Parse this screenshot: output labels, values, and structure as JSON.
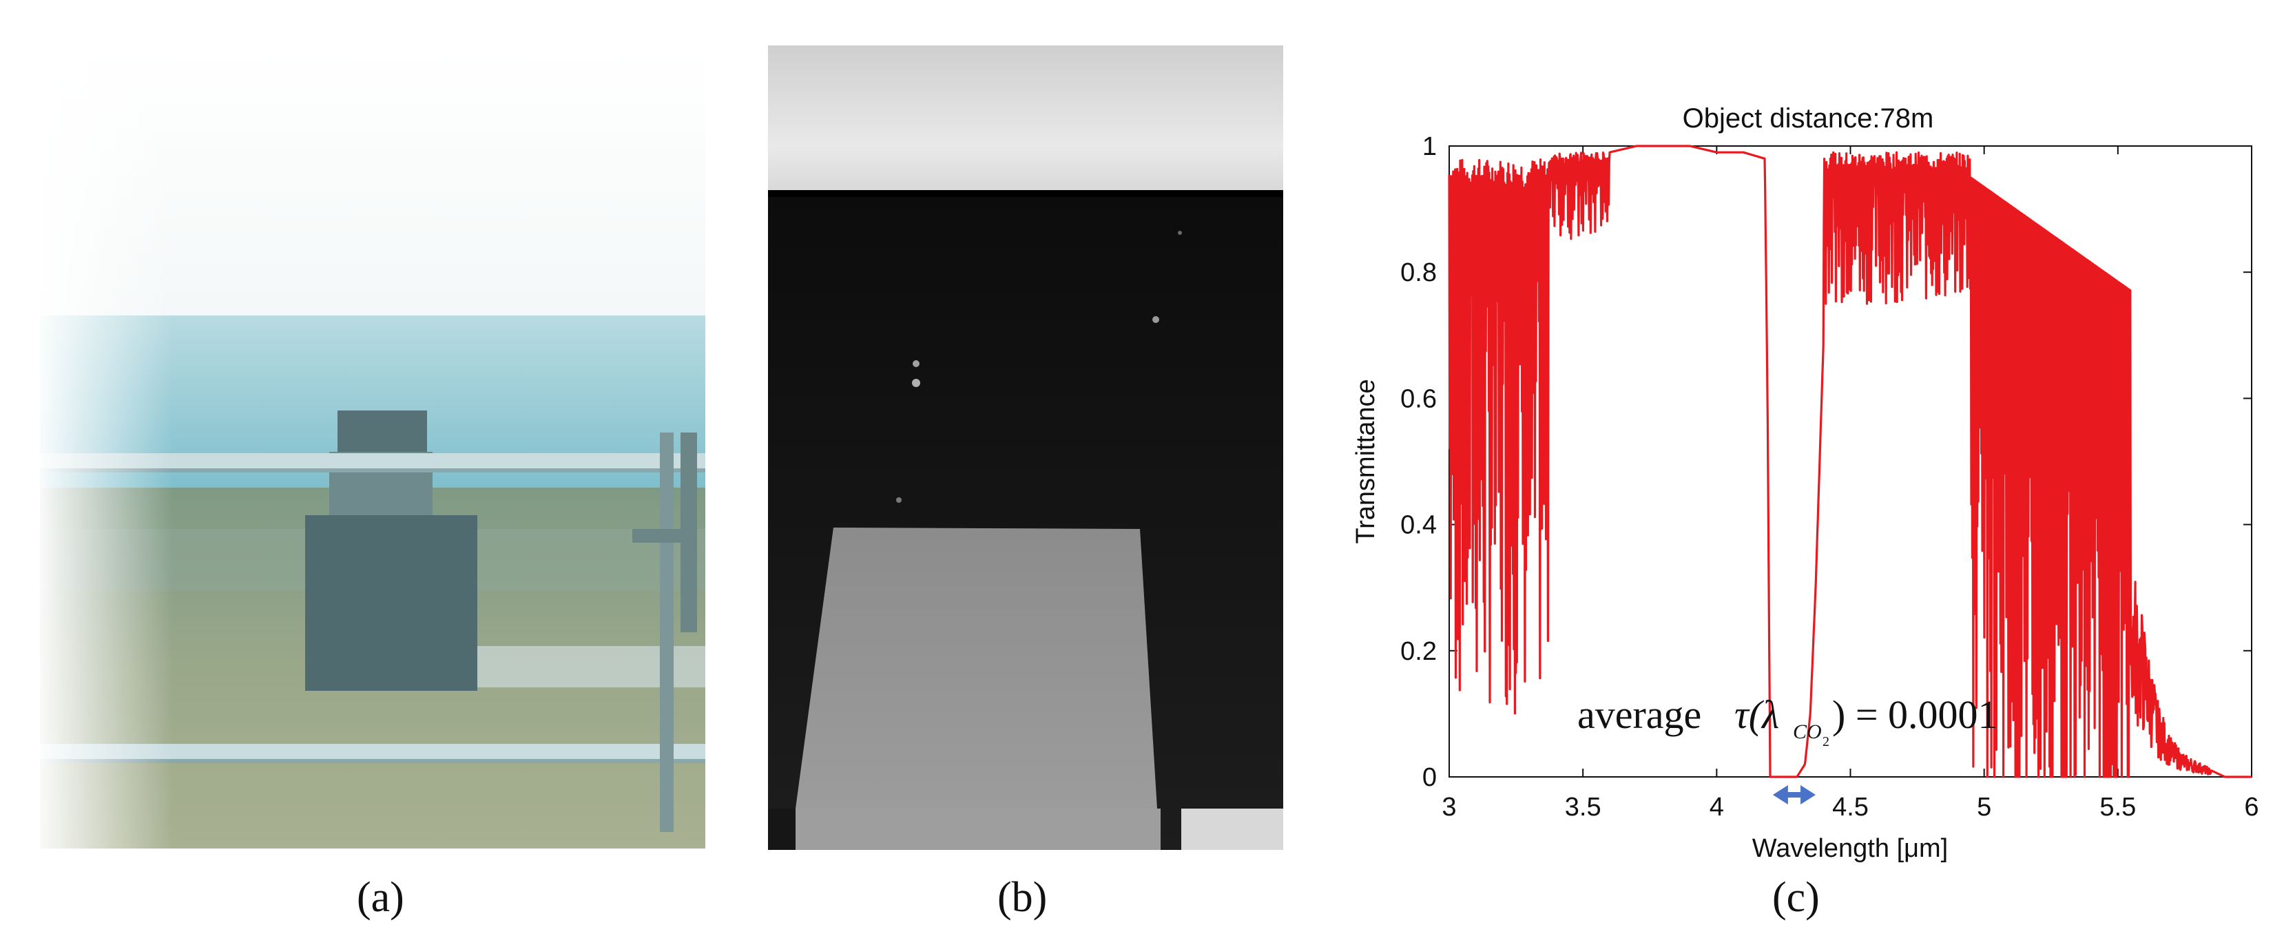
{
  "panels": {
    "a": {
      "caption": "(a)",
      "description": "visible photo"
    },
    "b": {
      "caption": "(b)",
      "description": "infrared image"
    },
    "c": {
      "caption": "(c)"
    }
  },
  "chart_data": {
    "type": "line",
    "title": "Object distance:78m",
    "xlabel": "Wavelength [μm]",
    "ylabel": "Transmittance",
    "xlim": [
      3,
      6
    ],
    "ylim": [
      0,
      1
    ],
    "xticks": [
      "3",
      "3.5",
      "4",
      "4.5",
      "5",
      "5.5",
      "6"
    ],
    "yticks": [
      "0",
      "0.2",
      "0.4",
      "0.6",
      "0.8",
      "1"
    ],
    "grid": false,
    "line_color": "#e8191f",
    "arrow_color": "#4a72c9",
    "annotation": {
      "prefix": "average",
      "tau": "τ(λ",
      "sub": "CO",
      "subsub": "2",
      "suffix": ") = 0.0001"
    },
    "arrow_range": [
      4.21,
      4.37
    ],
    "series": [
      {
        "x": [
          3.0,
          3.02,
          3.05,
          3.08,
          3.1,
          3.12,
          3.15,
          3.18,
          3.2,
          3.22,
          3.25,
          3.28,
          3.3,
          3.33,
          3.36,
          3.4,
          3.45,
          3.5,
          3.6,
          3.7,
          3.8,
          3.9,
          4.0,
          4.1,
          4.18,
          4.19,
          4.2,
          4.22,
          4.25,
          4.3,
          4.33,
          4.35,
          4.37,
          4.4,
          4.45,
          4.5,
          4.55,
          4.6,
          4.65,
          4.7,
          4.75,
          4.8,
          4.85,
          4.9,
          4.95,
          5.0,
          5.05,
          5.1,
          5.15,
          5.2,
          5.25,
          5.3,
          5.35,
          5.4,
          5.45,
          5.5,
          5.55,
          5.6,
          5.65,
          5.7,
          5.75,
          5.8,
          5.85,
          5.9,
          6.0
        ],
        "y": [
          0.95,
          0.4,
          0.96,
          0.2,
          0.95,
          0.1,
          0.96,
          0.25,
          0.95,
          0.18,
          0.97,
          0.3,
          0.94,
          0.6,
          0.97,
          0.96,
          0.98,
          0.99,
          0.99,
          1.0,
          1.0,
          1.0,
          0.99,
          0.99,
          0.98,
          0.6,
          0.0,
          0.0,
          0.0,
          0.0,
          0.02,
          0.1,
          0.3,
          0.7,
          0.9,
          0.97,
          0.98,
          0.97,
          0.99,
          0.98,
          0.98,
          0.96,
          0.95,
          0.93,
          0.92,
          0.88,
          0.86,
          0.8,
          0.75,
          0.72,
          0.7,
          0.68,
          0.63,
          0.6,
          0.5,
          0.4,
          0.3,
          0.2,
          0.1,
          0.05,
          0.03,
          0.02,
          0.01,
          0.0,
          0.0
        ]
      }
    ]
  }
}
